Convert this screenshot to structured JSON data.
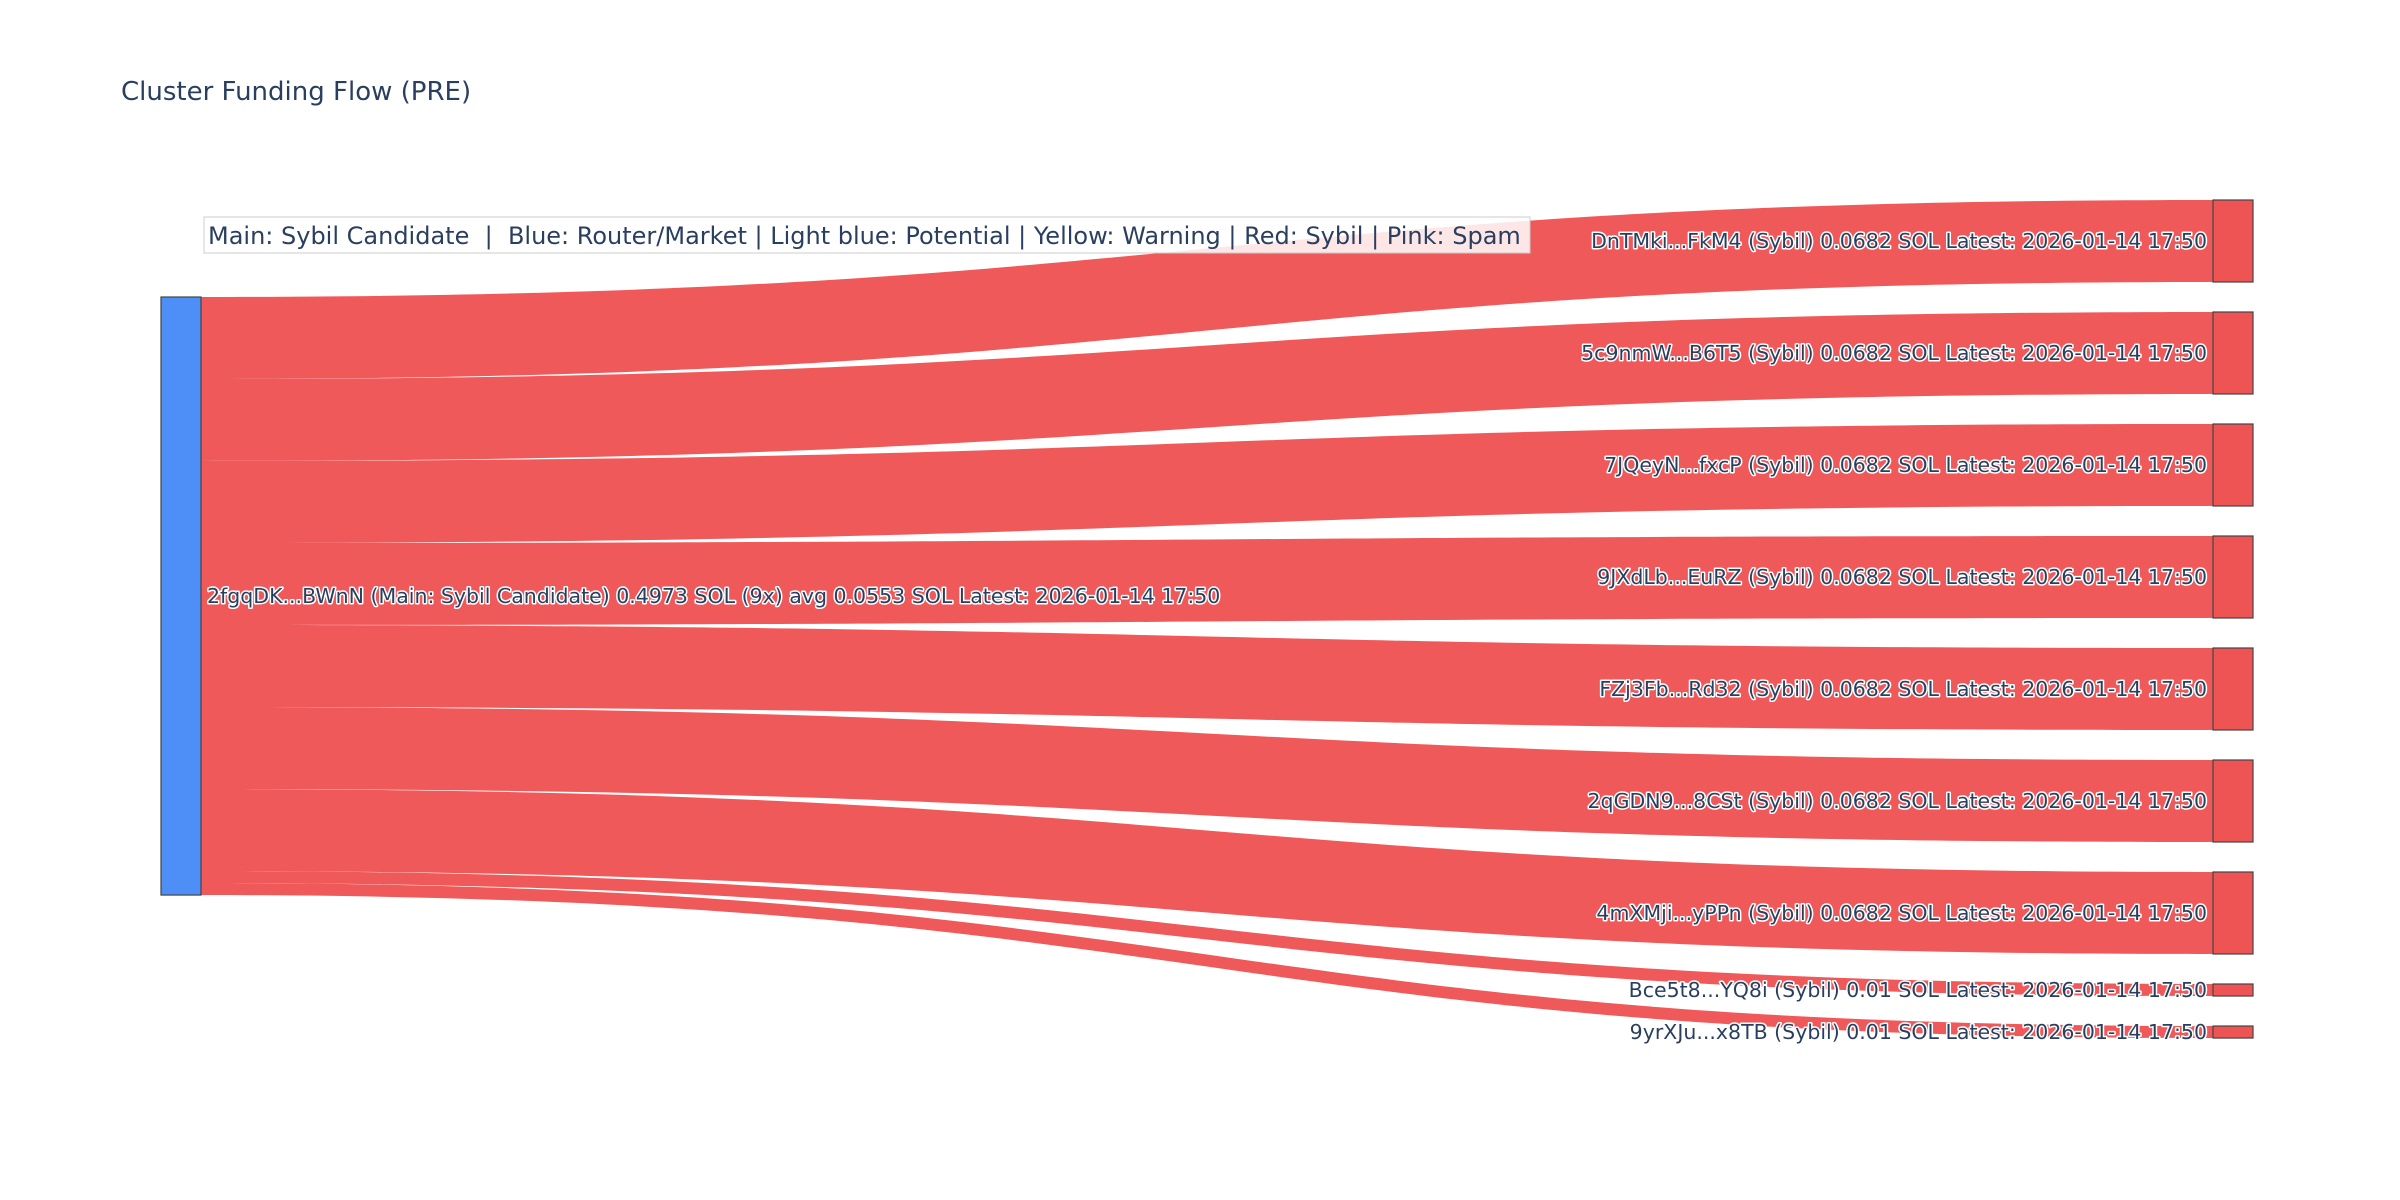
{
  "chart_data": {
    "type": "sankey",
    "title": "Cluster Funding Flow (PRE)",
    "legend_text": "Main: Sybil Candidate  |  Blue: Router/Market | Light blue: Potential | Yellow: Warning | Red: Sybil | Pink: Spam",
    "colors": {
      "source_node": "#4d8ef7",
      "target_node": "#ef5455",
      "link": "#ef5455",
      "text": "#2a3f5f"
    },
    "source": {
      "label": "2fgqDK...BWnN (Main: Sybil Candidate) 0.4973 SOL (9x) avg 0.0553 SOL Latest: 2026-01-14 17:50"
    },
    "targets": [
      {
        "label": "DnTMki...FkM4 (Sybil) 0.0682 SOL Latest: 2026-01-14 17:50",
        "value": 0.0682
      },
      {
        "label": "5c9nmW...B6T5 (Sybil) 0.0682 SOL Latest: 2026-01-14 17:50",
        "value": 0.0682
      },
      {
        "label": "7JQeyN...fxcP (Sybil) 0.0682 SOL Latest: 2026-01-14 17:50",
        "value": 0.0682
      },
      {
        "label": "9JXdLb...EuRZ (Sybil) 0.0682 SOL Latest: 2026-01-14 17:50",
        "value": 0.0682
      },
      {
        "label": "FZj3Fb...Rd32 (Sybil) 0.0682 SOL Latest: 2026-01-14 17:50",
        "value": 0.0682
      },
      {
        "label": "2qGDN9...8CSt (Sybil) 0.0682 SOL Latest: 2026-01-14 17:50",
        "value": 0.0682
      },
      {
        "label": "4mXMji...yPPn (Sybil) 0.0682 SOL Latest: 2026-01-14 17:50",
        "value": 0.0682
      },
      {
        "label": "Bce5t8...YQ8i (Sybil) 0.01 SOL Latest: 2026-01-14 17:50",
        "value": 0.01
      },
      {
        "label": "9yrXJu...x8TB (Sybil) 0.01 SOL Latest: 2026-01-14 17:50",
        "value": 0.01
      }
    ]
  }
}
